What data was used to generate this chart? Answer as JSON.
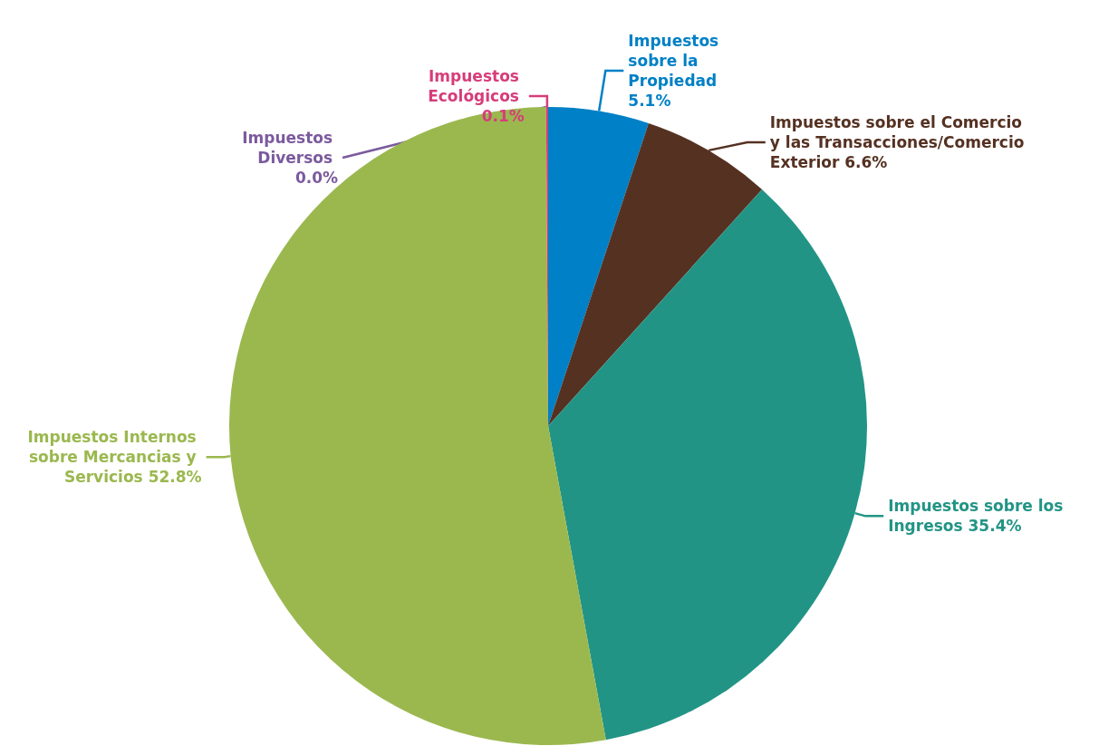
{
  "chart_data": {
    "type": "pie",
    "categories": [
      "Impuestos sobre la Propiedad",
      "Impuestos sobre el Comercio y las Transacciones/Comercio Exterior",
      "Impuestos sobre los Ingresos",
      "Impuestos Internos sobre Mercancias y Servicios",
      "Impuestos Diversos",
      "Impuestos Ecológicos"
    ],
    "values": [
      5.1,
      6.6,
      35.4,
      52.8,
      0.0,
      0.1
    ],
    "colors": [
      "#0080c6",
      "#553122",
      "#229485",
      "#9bb84f",
      "#7b5a9e",
      "#d63d7a"
    ],
    "value_labels": [
      "5.1%",
      "6.6%",
      "35.4%",
      "52.8%",
      "0.0%",
      "0.1%"
    ]
  }
}
